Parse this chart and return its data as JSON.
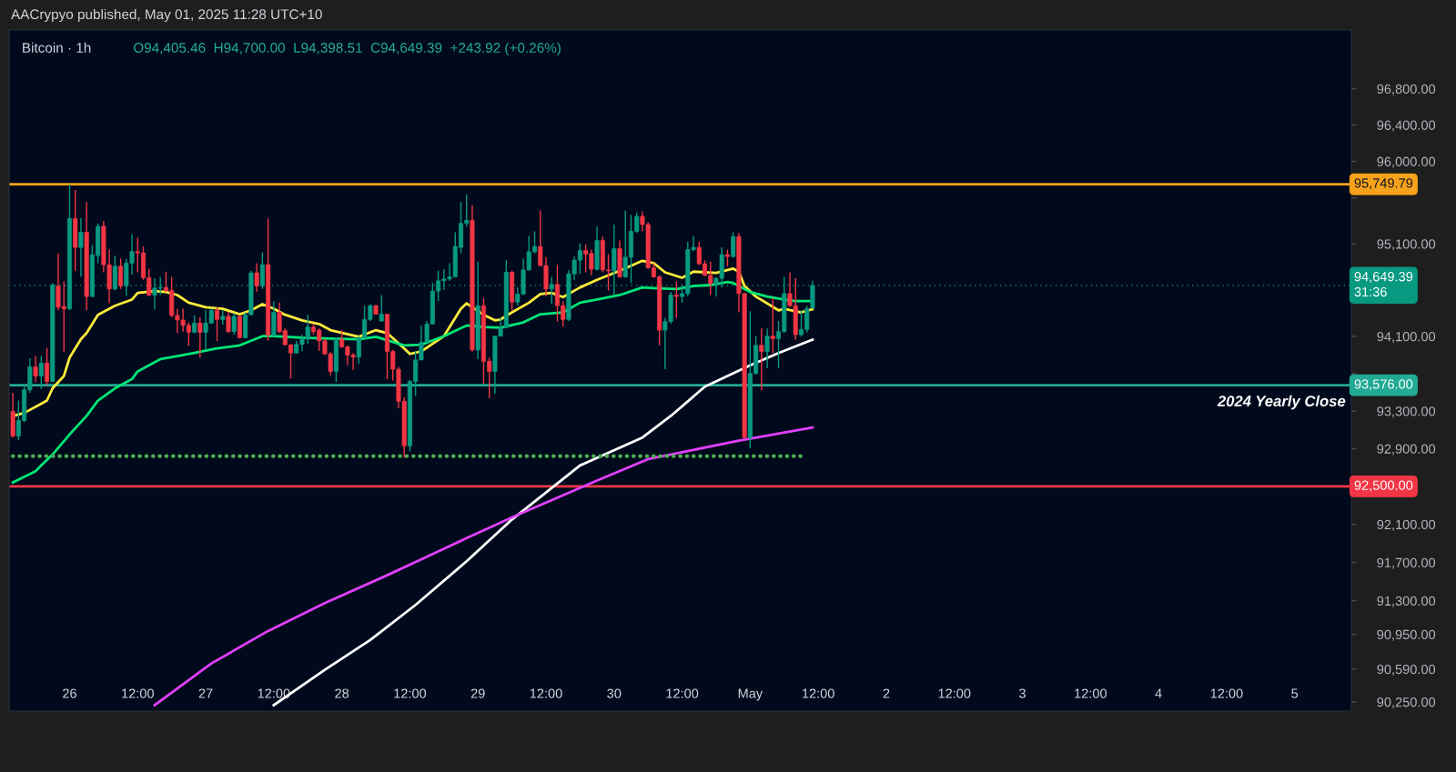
{
  "chart_data": {
    "type": "candlestick",
    "title": "Bitcoin · 1h",
    "subtitle": "O94,405.46  H94,700.00  L94,398.51  C94,649.39  +243.92 (+0.26%)",
    "annotations": [
      "AACrypyo published, May 01, 2025 11:28 UTC+10",
      {
        "text": "2024 Yearly Close",
        "x": "2025-05-05T09:00",
        "y": 93576
      }
    ],
    "x": [
      "2025-04-25T14:00",
      "2025-04-25T15:00",
      "2025-04-25T16:00",
      "2025-04-25T17:00",
      "2025-04-25T18:00",
      "2025-04-25T19:00",
      "2025-04-25T20:00",
      "2025-04-25T21:00",
      "2025-04-25T22:00",
      "2025-04-25T23:00",
      "2025-04-26T00:00",
      "2025-04-26T01:00",
      "2025-04-26T02:00",
      "2025-04-26T03:00",
      "2025-04-26T04:00",
      "2025-04-26T05:00",
      "2025-04-26T06:00",
      "2025-04-26T07:00",
      "2025-04-26T08:00",
      "2025-04-26T09:00",
      "2025-04-26T10:00",
      "2025-04-26T11:00",
      "2025-04-26T12:00",
      "2025-04-26T13:00",
      "2025-04-26T14:00",
      "2025-04-26T15:00",
      "2025-04-26T16:00",
      "2025-04-26T17:00",
      "2025-04-26T18:00",
      "2025-04-26T19:00",
      "2025-04-26T20:00",
      "2025-04-26T21:00",
      "2025-04-26T22:00",
      "2025-04-26T23:00",
      "2025-04-27T00:00",
      "2025-04-27T01:00",
      "2025-04-27T02:00",
      "2025-04-27T03:00",
      "2025-04-27T04:00",
      "2025-04-27T05:00",
      "2025-04-27T06:00",
      "2025-04-27T07:00",
      "2025-04-27T08:00",
      "2025-04-27T09:00",
      "2025-04-27T10:00",
      "2025-04-27T11:00",
      "2025-04-27T12:00",
      "2025-04-27T13:00",
      "2025-04-27T14:00",
      "2025-04-27T15:00",
      "2025-04-27T16:00",
      "2025-04-27T17:00",
      "2025-04-27T18:00",
      "2025-04-27T19:00",
      "2025-04-27T20:00",
      "2025-04-27T21:00",
      "2025-04-27T22:00",
      "2025-04-27T23:00",
      "2025-04-28T00:00",
      "2025-04-28T01:00",
      "2025-04-28T02:00",
      "2025-04-28T03:00",
      "2025-04-28T04:00",
      "2025-04-28T05:00",
      "2025-04-28T06:00",
      "2025-04-28T07:00",
      "2025-04-28T08:00",
      "2025-04-28T09:00",
      "2025-04-28T10:00",
      "2025-04-28T11:00",
      "2025-04-28T12:00",
      "2025-04-28T13:00",
      "2025-04-28T14:00",
      "2025-04-28T15:00",
      "2025-04-28T16:00",
      "2025-04-28T17:00",
      "2025-04-28T18:00",
      "2025-04-28T19:00",
      "2025-04-28T20:00",
      "2025-04-28T21:00",
      "2025-04-28T22:00",
      "2025-04-28T23:00",
      "2025-04-29T00:00",
      "2025-04-29T01:00",
      "2025-04-29T02:00",
      "2025-04-29T03:00",
      "2025-04-29T04:00",
      "2025-04-29T05:00",
      "2025-04-29T06:00",
      "2025-04-29T07:00",
      "2025-04-29T08:00",
      "2025-04-29T09:00",
      "2025-04-29T10:00",
      "2025-04-29T11:00",
      "2025-04-29T12:00",
      "2025-04-29T13:00",
      "2025-04-29T14:00",
      "2025-04-29T15:00",
      "2025-04-29T16:00",
      "2025-04-29T17:00",
      "2025-04-29T18:00",
      "2025-04-29T19:00",
      "2025-04-29T20:00",
      "2025-04-29T21:00",
      "2025-04-29T22:00",
      "2025-04-29T23:00",
      "2025-04-30T00:00",
      "2025-04-30T01:00",
      "2025-04-30T02:00",
      "2025-04-30T03:00",
      "2025-04-30T04:00",
      "2025-04-30T05:00",
      "2025-04-30T06:00",
      "2025-04-30T07:00",
      "2025-04-30T08:00",
      "2025-04-30T09:00",
      "2025-04-30T10:00",
      "2025-04-30T11:00",
      "2025-04-30T12:00",
      "2025-04-30T13:00",
      "2025-04-30T14:00",
      "2025-04-30T15:00",
      "2025-04-30T16:00",
      "2025-04-30T17:00",
      "2025-04-30T18:00",
      "2025-04-30T19:00",
      "2025-04-30T20:00",
      "2025-04-30T21:00",
      "2025-04-30T22:00",
      "2025-04-30T23:00",
      "2025-05-01T00:00",
      "2025-05-01T01:00",
      "2025-05-01T02:00",
      "2025-05-01T03:00",
      "2025-05-01T04:00",
      "2025-05-01T05:00",
      "2025-05-01T06:00",
      "2025-05-01T07:00",
      "2025-05-01T08:00",
      "2025-05-01T09:00",
      "2025-05-01T10:00",
      "2025-05-01T11:00"
    ],
    "ohlc": [
      [
        93297,
        93494,
        93018,
        93034
      ],
      [
        93034,
        93412,
        92992,
        93199
      ],
      [
        93199,
        93576,
        93182,
        93527
      ],
      [
        93527,
        93865,
        93494,
        93773
      ],
      [
        93773,
        93888,
        93609,
        93675
      ],
      [
        93675,
        93888,
        93537,
        93813
      ],
      [
        93813,
        93977,
        93576,
        93616
      ],
      [
        93616,
        94676,
        93609,
        94653
      ],
      [
        94643,
        94995,
        94380,
        94413
      ],
      [
        94420,
        94692,
        93931,
        94397
      ],
      [
        94397,
        95750,
        94380,
        95376
      ],
      [
        95376,
        95685,
        94808,
        95061
      ],
      [
        95061,
        95382,
        94742,
        95225
      ],
      [
        95225,
        95556,
        94380,
        94529
      ],
      [
        94529,
        95087,
        94529,
        94982
      ],
      [
        94972,
        95323,
        94890,
        95290
      ],
      [
        95290,
        95350,
        94791,
        94873
      ],
      [
        94873,
        95038,
        94456,
        94611
      ],
      [
        94611,
        94972,
        94594,
        94857
      ],
      [
        94857,
        94939,
        94611,
        94643
      ],
      [
        94643,
        94939,
        94535,
        94890
      ],
      [
        94890,
        95202,
        94765,
        95015
      ],
      [
        95015,
        95169,
        94791,
        95001
      ],
      [
        95001,
        95071,
        94709,
        94732
      ],
      [
        94732,
        94831,
        94529,
        94545
      ],
      [
        94545,
        94726,
        94391,
        94620
      ],
      [
        94620,
        94742,
        94545,
        94627
      ],
      [
        94627,
        94798,
        94578,
        94594
      ],
      [
        94594,
        94742,
        94305,
        94325
      ],
      [
        94325,
        94397,
        94135,
        94276
      ],
      [
        94276,
        94397,
        94151,
        94217
      ],
      [
        94217,
        94250,
        93997,
        94144
      ],
      [
        94144,
        94325,
        94135,
        94243
      ],
      [
        94243,
        94305,
        93872,
        94144
      ],
      [
        94144,
        94380,
        93954,
        94243
      ],
      [
        94243,
        94397,
        94233,
        94380
      ],
      [
        94380,
        94413,
        94049,
        94282
      ],
      [
        94282,
        94380,
        94226,
        94315
      ],
      [
        94315,
        94364,
        94135,
        94151
      ],
      [
        94151,
        94348,
        94118,
        94315
      ],
      [
        94315,
        94331,
        94085,
        94085
      ],
      [
        94085,
        94358,
        94085,
        94331
      ],
      [
        94331,
        94808,
        94331,
        94785
      ],
      [
        94785,
        94890,
        94578,
        94643
      ],
      [
        94643,
        95005,
        94611,
        94873
      ],
      [
        94873,
        95376,
        94052,
        94112
      ],
      [
        94112,
        94479,
        94102,
        94358
      ],
      [
        94358,
        94463,
        94135,
        94151
      ],
      [
        94161,
        94184,
        94003,
        94010
      ],
      [
        94010,
        94010,
        93648,
        93921
      ],
      [
        93921,
        94052,
        93921,
        94013
      ],
      [
        94013,
        94118,
        93938,
        94069
      ],
      [
        94069,
        94331,
        94020,
        94200
      ],
      [
        94200,
        94233,
        94118,
        94151
      ],
      [
        94167,
        94184,
        93944,
        94052
      ],
      [
        94052,
        94069,
        93898,
        93911
      ],
      [
        93911,
        93931,
        93681,
        93724
      ],
      [
        93724,
        94085,
        93609,
        94069
      ],
      [
        94069,
        94167,
        93977,
        93987
      ],
      [
        93987,
        94003,
        93790,
        93898
      ],
      [
        93898,
        93921,
        93740,
        93878
      ],
      [
        93878,
        94102,
        93806,
        94085
      ],
      [
        94085,
        94430,
        94075,
        94282
      ],
      [
        94282,
        94446,
        94266,
        94430
      ],
      [
        94430,
        94436,
        94338,
        94338
      ],
      [
        94266,
        94545,
        94259,
        94338
      ],
      [
        94338,
        94338,
        93642,
        93938
      ],
      [
        93938,
        93954,
        93626,
        93747
      ],
      [
        93747,
        93773,
        93330,
        93405
      ],
      [
        93405,
        93445,
        92804,
        92929
      ],
      [
        92929,
        93632,
        92870,
        93616
      ],
      [
        93616,
        93944,
        93461,
        93846
      ],
      [
        93846,
        94217,
        93846,
        94036
      ],
      [
        94036,
        94266,
        94036,
        94233
      ],
      [
        94233,
        94676,
        94233,
        94588
      ],
      [
        94588,
        94808,
        94479,
        94699
      ],
      [
        94699,
        94824,
        94601,
        94719
      ],
      [
        94719,
        94890,
        94699,
        94742
      ],
      [
        94742,
        95225,
        94742,
        95071
      ],
      [
        95061,
        95556,
        94995,
        95323
      ],
      [
        95323,
        95639,
        95290,
        95356
      ],
      [
        95356,
        95520,
        93938,
        93954
      ],
      [
        93954,
        94906,
        93855,
        94430
      ],
      [
        94430,
        94512,
        93593,
        93832
      ],
      [
        93832,
        93872,
        93438,
        93724
      ],
      [
        93724,
        94102,
        93484,
        94102
      ],
      [
        94102,
        94300,
        94102,
        94194
      ],
      [
        94194,
        94923,
        94194,
        94791
      ],
      [
        94791,
        94808,
        94380,
        94469
      ],
      [
        94469,
        94630,
        94430,
        94555
      ],
      [
        94555,
        94939,
        94545,
        94817
      ],
      [
        94817,
        95185,
        94808,
        95015
      ],
      [
        95015,
        95235,
        94995,
        95071
      ],
      [
        95071,
        95464,
        94857,
        94864
      ],
      [
        94864,
        94955,
        94529,
        94611
      ],
      [
        94611,
        94742,
        94446,
        94660
      ],
      [
        94660,
        94873,
        94259,
        94430
      ],
      [
        94430,
        94479,
        94207,
        94282
      ],
      [
        94282,
        94817,
        94266,
        94775
      ],
      [
        94775,
        94962,
        94709,
        94923
      ],
      [
        94923,
        95104,
        94775,
        95028
      ],
      [
        95028,
        95094,
        94791,
        94988
      ],
      [
        94995,
        95038,
        94758,
        94824
      ],
      [
        94824,
        95290,
        94808,
        95136
      ],
      [
        95136,
        95179,
        94791,
        94817
      ],
      [
        94817,
        94988,
        94594,
        94808
      ],
      [
        94808,
        95310,
        94545,
        95048
      ],
      [
        95048,
        95136,
        94732,
        94742
      ],
      [
        94742,
        95464,
        94730,
        94955
      ],
      [
        94955,
        95415,
        94676,
        95235
      ],
      [
        95235,
        95441,
        95218,
        95399
      ],
      [
        95399,
        95454,
        95235,
        95310
      ],
      [
        95310,
        95333,
        94830,
        94840
      ],
      [
        94840,
        94890,
        94732,
        94742
      ],
      [
        94742,
        94759,
        94003,
        94167
      ],
      [
        94167,
        94299,
        93747,
        94259
      ],
      [
        94259,
        94578,
        94233,
        94545
      ],
      [
        94545,
        94692,
        94299,
        94529
      ],
      [
        94529,
        94660,
        94463,
        94561
      ],
      [
        94561,
        95120,
        94529,
        95038
      ],
      [
        95038,
        95185,
        95020,
        95061
      ],
      [
        95061,
        95120,
        94870,
        94883
      ],
      [
        94883,
        94920,
        94750,
        94758
      ],
      [
        94758,
        94906,
        94545,
        94667
      ],
      [
        94667,
        94740,
        94529,
        94726
      ],
      [
        94726,
        95061,
        94627,
        94982
      ],
      [
        94982,
        95038,
        94857,
        94962
      ],
      [
        94962,
        95225,
        94950,
        95179
      ],
      [
        95179,
        95218,
        94358,
        94561
      ],
      [
        94561,
        94568,
        93011,
        93018
      ],
      [
        93018,
        94371,
        92906,
        93701
      ],
      [
        93701,
        94102,
        93690,
        94003
      ],
      [
        94003,
        94184,
        93523,
        93938
      ],
      [
        93938,
        94184,
        93757,
        94102
      ],
      [
        94102,
        94512,
        93921,
        94075
      ],
      [
        94075,
        94266,
        93757,
        94151
      ],
      [
        94151,
        94742,
        94140,
        94561
      ],
      [
        94561,
        94791,
        94420,
        94430
      ],
      [
        94430,
        94726,
        94062,
        94118
      ],
      [
        94118,
        94380,
        94100,
        94174
      ],
      [
        94174,
        94430,
        94141,
        94397
      ],
      [
        94405.46,
        94700,
        94398.51,
        94649.39
      ]
    ],
    "colors": [
      "#f23645",
      "#089981",
      "#089981",
      "#089981",
      "#f23645",
      "#089981",
      "#f23645",
      "#089981",
      "#f23645",
      "#f23645",
      "#089981",
      "#f23645",
      "#089981",
      "#f23645",
      "#089981",
      "#089981",
      "#f23645",
      "#f23645",
      "#089981",
      "#f23645",
      "#089981",
      "#089981",
      "#f23645",
      "#f23645",
      "#f23645",
      "#089981",
      "#089981",
      "#f23645",
      "#f23645",
      "#f23645",
      "#f23645",
      "#f23645",
      "#089981",
      "#f23645",
      "#089981",
      "#089981",
      "#f23645",
      "#089981",
      "#f23645",
      "#089981",
      "#f23645",
      "#089981",
      "#089981",
      "#f23645",
      "#089981",
      "#f23645",
      "#089981",
      "#f23645",
      "#f23645",
      "#f23645",
      "#089981",
      "#089981",
      "#089981",
      "#f23645",
      "#f23645",
      "#f23645",
      "#f23645",
      "#089981",
      "#f23645",
      "#f23645",
      "#f23645",
      "#089981",
      "#089981",
      "#089981",
      "#f23645",
      "#089981",
      "#f23645",
      "#f23645",
      "#f23645",
      "#f23645",
      "#089981",
      "#089981",
      "#089981",
      "#089981",
      "#089981",
      "#089981",
      "#089981",
      "#089981",
      "#089981",
      "#089981",
      "#089981",
      "#f23645",
      "#089981",
      "#f23645",
      "#f23645",
      "#089981",
      "#089981",
      "#089981",
      "#f23645",
      "#089981",
      "#089981",
      "#089981",
      "#089981",
      "#f23645",
      "#f23645",
      "#089981",
      "#f23645",
      "#f23645",
      "#089981",
      "#089981",
      "#089981",
      "#f23645",
      "#f23645",
      "#089981",
      "#f23645",
      "#f23645",
      "#089981",
      "#f23645",
      "#089981",
      "#089981",
      "#089981",
      "#f23645",
      "#f23645",
      "#f23645",
      "#f23645",
      "#089981",
      "#089981",
      "#f23645",
      "#089981",
      "#089981",
      "#089981",
      "#f23645",
      "#f23645",
      "#f23645",
      "#089981",
      "#089981",
      "#f23645",
      "#089981",
      "#f23645",
      "#f23645",
      "#089981",
      "#089981",
      "#f23645",
      "#089981",
      "#f23645",
      "#089981",
      "#089981",
      "#f23645",
      "#f23645",
      "#089981",
      "#089981",
      "#089981"
    ],
    "series": [
      {
        "type": "line",
        "color": "#ffeb3b",
        "x": [
          "2025-04-25T14:00",
          "2025-04-25T16:00",
          "2025-04-25T19:00",
          "2025-04-25T20:00",
          "2025-04-25T21:00",
          "2025-04-25T23:00",
          "2025-04-26T00:00",
          "2025-04-26T02:00",
          "2025-04-26T03:00",
          "2025-04-26T05:00",
          "2025-04-26T08:00",
          "2025-04-26T11:00",
          "2025-04-26T12:00",
          "2025-04-26T15:00",
          "2025-04-26T17:00",
          "2025-04-26T19:00",
          "2025-04-26T21:00",
          "2025-04-27T00:00",
          "2025-04-27T03:00",
          "2025-04-27T06:00",
          "2025-04-27T08:00",
          "2025-04-27T10:00",
          "2025-04-27T12:00",
          "2025-04-27T14:00",
          "2025-04-27T17:00",
          "2025-04-27T20:00",
          "2025-04-27T22:00",
          "2025-04-28T03:00",
          "2025-04-28T06:00",
          "2025-04-28T08:00",
          "2025-04-28T11:00",
          "2025-04-28T12:00",
          "2025-04-28T14:00",
          "2025-04-28T18:00",
          "2025-04-28T21:00",
          "2025-04-28T22:00",
          "2025-04-28T23:00",
          "2025-04-29T01:00",
          "2025-04-29T03:00",
          "2025-04-29T04:00",
          "2025-04-29T06:00",
          "2025-04-29T09:00",
          "2025-04-29T11:00",
          "2025-04-29T13:00",
          "2025-04-29T15:00",
          "2025-04-29T18:00",
          "2025-04-29T21:00",
          "2025-04-30T01:00",
          "2025-04-30T05:00",
          "2025-04-30T07:00",
          "2025-04-30T09:00",
          "2025-04-30T12:00",
          "2025-04-30T14:00",
          "2025-04-30T18:00",
          "2025-04-30T21:00",
          "2025-04-30T22:00",
          "2025-04-30T23:00",
          "2025-05-01T01:00",
          "2025-05-01T05:00",
          "2025-05-01T06:00",
          "2025-05-01T09:00",
          "2025-05-01T11:00"
        ],
        "values": [
          93248,
          93280,
          93379,
          93412,
          93543,
          93675,
          93872,
          94069,
          94135,
          94332,
          94430,
          94496,
          94568,
          94588,
          94578,
          94545,
          94463,
          94413,
          94397,
          94338,
          94380,
          94446,
          94397,
          94332,
          94272,
          94233,
          94167,
          94095,
          94167,
          94135,
          93970,
          93911,
          93938,
          94102,
          94397,
          94456,
          94413,
          94332,
          94272,
          94282,
          94358,
          94463,
          94555,
          94568,
          94522,
          94627,
          94709,
          94808,
          94916,
          94890,
          94791,
          94732,
          94798,
          94785,
          94831,
          94798,
          94643,
          94529,
          94380,
          94397,
          94358,
          94393
        ]
      },
      {
        "type": "line",
        "color": "#00e676",
        "x": [
          "2025-04-25T14:00",
          "2025-04-25T18:00",
          "2025-04-25T19:00",
          "2025-04-25T21:00",
          "2025-04-26T00:00",
          "2025-04-26T03:00",
          "2025-04-26T05:00",
          "2025-04-26T08:00",
          "2025-04-26T11:00",
          "2025-04-26T12:00",
          "2025-04-26T16:00",
          "2025-04-26T19:00",
          "2025-04-26T22:00",
          "2025-04-27T02:00",
          "2025-04-27T06:00",
          "2025-04-27T08:00",
          "2025-04-27T10:00",
          "2025-04-27T12:00",
          "2025-04-27T17:00",
          "2025-04-27T22:00",
          "2025-04-28T03:00",
          "2025-04-28T06:00",
          "2025-04-28T11:00",
          "2025-04-28T14:00",
          "2025-04-28T18:00",
          "2025-04-28T22:00",
          "2025-04-29T01:00",
          "2025-04-29T04:00",
          "2025-04-29T08:00",
          "2025-04-29T11:00",
          "2025-04-29T15:00",
          "2025-04-29T18:00",
          "2025-04-29T21:00",
          "2025-04-30T01:00",
          "2025-04-30T05:00",
          "2025-04-30T07:00",
          "2025-04-30T11:00",
          "2025-04-30T14:00",
          "2025-04-30T17:00",
          "2025-04-30T20:00",
          "2025-04-30T21:00",
          "2025-05-01T00:00",
          "2025-05-01T03:00",
          "2025-05-01T06:00",
          "2025-05-01T08:00",
          "2025-05-01T11:00"
        ],
        "values": [
          92542,
          92660,
          92723,
          92838,
          93051,
          93248,
          93412,
          93543,
          93642,
          93724,
          93855,
          93888,
          93921,
          93970,
          94003,
          94052,
          94102,
          94102,
          94085,
          94075,
          94069,
          94095,
          94003,
          94010,
          94102,
          94217,
          94200,
          94194,
          94250,
          94338,
          94358,
          94463,
          94496,
          94545,
          94627,
          94620,
          94611,
          94643,
          94653,
          94686,
          94676,
          94578,
          94529,
          94496,
          94479,
          94479
        ]
      },
      {
        "type": "line",
        "color": "#ffffff",
        "x": [
          "2025-04-27T12:00",
          "2025-04-27T21:00",
          "2025-04-28T05:00",
          "2025-04-28T13:00",
          "2025-04-28T22:00",
          "2025-04-29T06:00",
          "2025-04-29T18:00",
          "2025-04-30T05:00",
          "2025-04-30T10:00",
          "2025-04-30T16:00",
          "2025-05-01T00:00",
          "2025-05-01T05:00",
          "2025-05-01T11:00"
        ],
        "values": [
          90217,
          90582,
          90890,
          91256,
          91713,
          92151,
          92722,
          93018,
          93248,
          93560,
          93790,
          93921,
          94065
        ]
      },
      {
        "type": "line",
        "color": "#e040fb",
        "x": [
          "2025-04-26T15:00",
          "2025-04-27T01:00",
          "2025-04-27T11:00",
          "2025-04-27T21:00",
          "2025-04-28T08:00",
          "2025-04-28T15:00",
          "2025-04-28T22:00",
          "2025-04-29T07:00",
          "2025-04-29T21:00",
          "2025-04-30T06:00",
          "2025-04-30T22:00",
          "2025-05-01T11:00"
        ],
        "values": [
          90217,
          90648,
          90985,
          91275,
          91566,
          91760,
          91955,
          92199,
          92562,
          92789,
          92985,
          93125
        ]
      },
      {
        "type": "line",
        "color": "#4caf50",
        "line_style": "dotted",
        "x": [
          "2025-04-25T14:00",
          "2025-05-01T09:00"
        ],
        "values": [
          92821,
          92821
        ]
      }
    ],
    "ref_lines": [
      {
        "axis": "y",
        "value": 95749.79,
        "label": "95,749.79",
        "color": "#f7a21b",
        "line_style": "solid"
      },
      {
        "axis": "y",
        "value": 94649.39,
        "label": "94,649.39\n31:36",
        "color": "#089981",
        "line_style": "dotted"
      },
      {
        "axis": "y",
        "value": 93576,
        "label": "93,576.00",
        "color": "#22ab94",
        "line_style": "solid"
      },
      {
        "axis": "y",
        "value": 92500,
        "label": "92,500.00",
        "color": "#f23645",
        "line_style": "solid"
      }
    ],
    "log": "y",
    "xlim": [
      "2025-04-25T13:20",
      "2025-05-05T10:00"
    ],
    "xticks": [
      {
        "value": "2025-04-26",
        "label": "26"
      },
      {
        "value": "2025-04-26T12:00",
        "label": "12:00"
      },
      {
        "value": "2025-04-27",
        "label": "27"
      },
      {
        "value": "2025-04-27T12:00",
        "label": "12:00"
      },
      {
        "value": "2025-04-28",
        "label": "28"
      },
      {
        "value": "2025-04-28T12:00",
        "label": "12:00"
      },
      {
        "value": "2025-04-29",
        "label": "29"
      },
      {
        "value": "2025-04-29T12:00",
        "label": "12:00"
      },
      {
        "value": "2025-04-30",
        "label": "30"
      },
      {
        "value": "2025-04-30T12:00",
        "label": "12:00"
      },
      {
        "value": "2025-05-01",
        "label": "May"
      },
      {
        "value": "2025-05-01T12:00",
        "label": "12:00"
      },
      {
        "value": "2025-05-02",
        "label": "2"
      },
      {
        "value": "2025-05-02T12:00",
        "label": "12:00"
      },
      {
        "value": "2025-05-03",
        "label": "3"
      },
      {
        "value": "2025-05-03T12:00",
        "label": "12:00"
      },
      {
        "value": "2025-05-04",
        "label": "4"
      },
      {
        "value": "2025-05-04T12:00",
        "label": "12:00"
      },
      {
        "value": "2025-05-05",
        "label": "5"
      }
    ],
    "ylim": [
      90156,
      97452
    ],
    "yticks": [
      {
        "value": 96800,
        "label": "96,800.00"
      },
      {
        "value": 96400,
        "label": "96,400.00"
      },
      {
        "value": 96000,
        "label": "96,000.00"
      },
      {
        "value": 95600,
        "label": null
      },
      {
        "value": 95100,
        "label": "95,100.00"
      },
      {
        "value": 94100,
        "label": "94,100.00"
      },
      {
        "value": 93700,
        "label": null
      },
      {
        "value": 93300,
        "label": "93,300.00"
      },
      {
        "value": 92900,
        "label": "92,900.00"
      },
      {
        "value": 92100,
        "label": "92,100.00"
      },
      {
        "value": 91700,
        "label": "91,700.00"
      },
      {
        "value": 91300,
        "label": "91,300.00"
      },
      {
        "value": 90950,
        "label": "90,950.00"
      },
      {
        "value": 90590,
        "label": "90,590.00"
      },
      {
        "value": 90250,
        "label": "90,250.00"
      }
    ],
    "grid": false,
    "legend": false
  }
}
